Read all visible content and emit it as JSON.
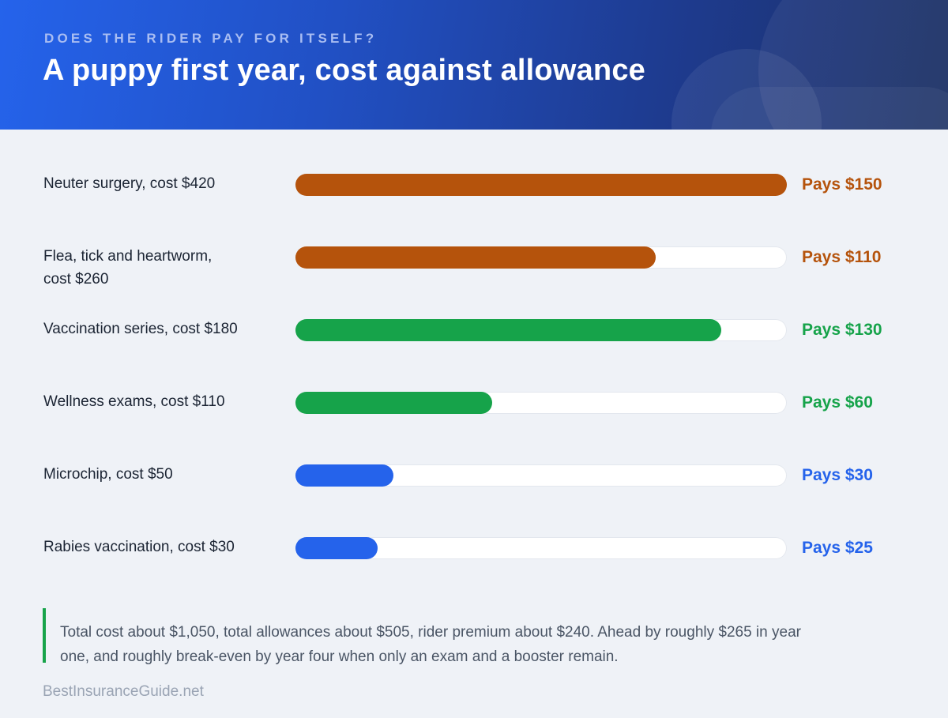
{
  "header": {
    "eyebrow": "DOES THE RIDER PAY FOR ITSELF?",
    "title": "A puppy first year, cost against allowance"
  },
  "colors": {
    "orange": "#b5530c",
    "green": "#16a34a",
    "blue": "#2563eb"
  },
  "chart_data": {
    "type": "bar",
    "orientation": "horizontal",
    "scale_max": 150,
    "categories": [
      "Neuter surgery, cost $420",
      "Flea, tick and heartworm, cost $260",
      "Vaccination series, cost $180",
      "Wellness exams, cost $110",
      "Microchip, cost $50",
      "Rabies vaccination, cost $30"
    ],
    "costs": [
      420,
      260,
      180,
      110,
      50,
      30
    ],
    "values": [
      150,
      110,
      130,
      60,
      30,
      25
    ],
    "value_labels": [
      "Pays $150",
      "Pays $110",
      "Pays $130",
      "Pays $60",
      "Pays $30",
      "Pays $25"
    ],
    "bar_colors": [
      "orange",
      "orange",
      "green",
      "green",
      "blue",
      "blue"
    ]
  },
  "note": "Total cost about $1,050, total allowances about $505, rider premium about $240. Ahead by roughly $265 in year one, and roughly break-even by year four when only an exam and a booster remain.",
  "footer": "BestInsuranceGuide.net"
}
